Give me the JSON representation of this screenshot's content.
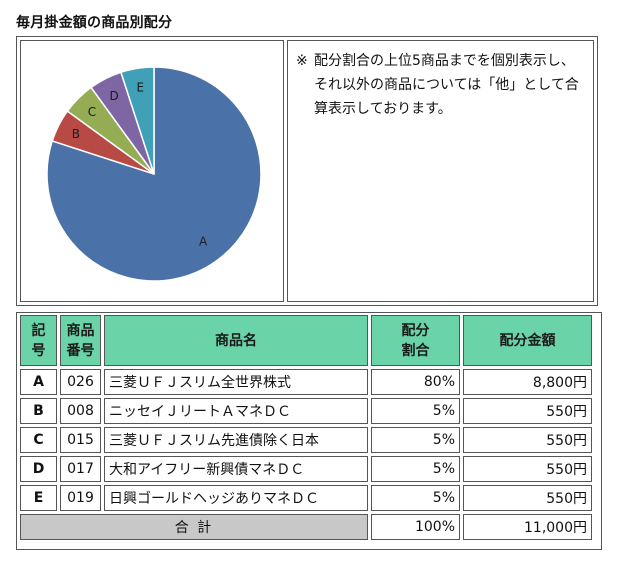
{
  "page_title": "毎月掛金額の商品別配分",
  "note": {
    "mark": "※",
    "text": "配分割合の上位5商品までを個別表示し、それ以外の商品については「他」として合算表示しております。"
  },
  "pie": {
    "slices": [
      {
        "label": "A",
        "value": 80,
        "color": "#4a72a8"
      },
      {
        "label": "B",
        "value": 5,
        "color": "#b84a45"
      },
      {
        "label": "C",
        "value": 5,
        "color": "#94ad55"
      },
      {
        "label": "D",
        "value": 5,
        "color": "#7d66a3"
      },
      {
        "label": "E",
        "value": 5,
        "color": "#3fa0b8"
      }
    ]
  },
  "table": {
    "headers": {
      "code": "記号",
      "number": "商品番号",
      "name": "商品名",
      "ratio": "配分割合",
      "amount": "配分金額"
    },
    "rows": [
      {
        "code": "A",
        "number": "026",
        "name": "三菱ＵＦＪスリム全世界株式",
        "ratio": "80%",
        "amount": "8,800円"
      },
      {
        "code": "B",
        "number": "008",
        "name": "ニッセイＪリートＡマネＤＣ",
        "ratio": "5%",
        "amount": "550円"
      },
      {
        "code": "C",
        "number": "015",
        "name": "三菱ＵＦＪスリム先進債除く日本",
        "ratio": "5%",
        "amount": "550円"
      },
      {
        "code": "D",
        "number": "017",
        "name": "大和アイフリー新興債マネＤＣ",
        "ratio": "5%",
        "amount": "550円"
      },
      {
        "code": "E",
        "number": "019",
        "name": "日興ゴールドヘッジありマネＤＣ",
        "ratio": "5%",
        "amount": "550円"
      }
    ],
    "total": {
      "label": "合 計",
      "ratio": "100%",
      "amount": "11,000円"
    }
  },
  "colors": {
    "header_bg": "#6bd3a8",
    "total_bg": "#c8c8c8",
    "border": "#555555"
  }
}
